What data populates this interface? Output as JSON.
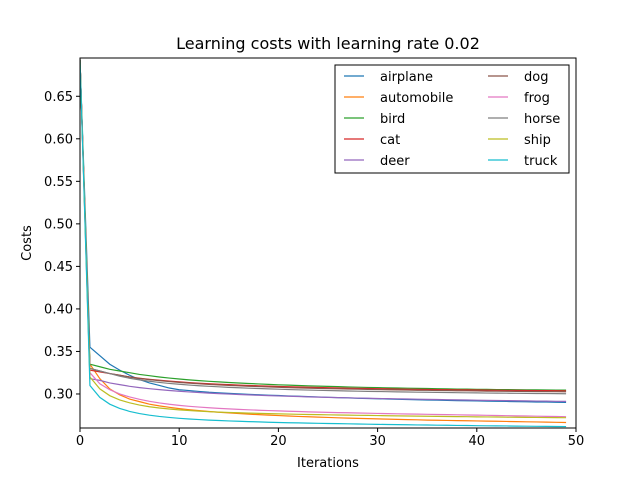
{
  "chart_data": {
    "type": "line",
    "title": "Learning costs with learning rate 0.02",
    "xlabel": "Iterations",
    "ylabel": "Costs",
    "xlim": [
      0,
      50
    ],
    "ylim": [
      0.26,
      0.695
    ],
    "xticks": [
      0,
      10,
      20,
      30,
      40,
      50
    ],
    "yticks": [
      0.3,
      0.35,
      0.4,
      0.45,
      0.5,
      0.55,
      0.6,
      0.65
    ],
    "ytick_labels": [
      "0.30",
      "0.35",
      "0.40",
      "0.45",
      "0.50",
      "0.55",
      "0.60",
      "0.65"
    ],
    "grid": false,
    "legend_position": "upper right",
    "x": [
      0,
      1,
      2,
      3,
      4,
      5,
      6,
      7,
      8,
      9,
      10,
      11,
      12,
      13,
      14,
      15,
      16,
      17,
      18,
      19,
      20,
      21,
      22,
      23,
      24,
      25,
      26,
      27,
      28,
      29,
      30,
      31,
      32,
      33,
      34,
      35,
      36,
      37,
      38,
      39,
      40,
      41,
      42,
      43,
      44,
      45,
      46,
      47,
      48,
      49
    ],
    "series": [
      {
        "name": "airplane",
        "color": "#1f77b4",
        "values": [
          0.693,
          0.355,
          0.345,
          0.335,
          0.328,
          0.322,
          0.317,
          0.313,
          0.31,
          0.307,
          0.305,
          0.304,
          0.303,
          0.302,
          0.3013,
          0.3007,
          0.3001,
          0.2996,
          0.2991,
          0.2986,
          0.2982,
          0.2977,
          0.2973,
          0.2969,
          0.2965,
          0.2961,
          0.2957,
          0.2954,
          0.295,
          0.2947,
          0.2944,
          0.2941,
          0.2938,
          0.2935,
          0.2932,
          0.2929,
          0.2927,
          0.2924,
          0.2922,
          0.292,
          0.2918,
          0.2916,
          0.2914,
          0.2912,
          0.291,
          0.2908,
          0.2906,
          0.2905,
          0.2903,
          0.2901
        ]
      },
      {
        "name": "automobile",
        "color": "#ff7f0e",
        "values": [
          0.693,
          0.335,
          0.318,
          0.306,
          0.299,
          0.294,
          0.291,
          0.288,
          0.286,
          0.2843,
          0.2828,
          0.2815,
          0.2804,
          0.2794,
          0.2785,
          0.2777,
          0.277,
          0.2763,
          0.2757,
          0.2751,
          0.2746,
          0.2741,
          0.2736,
          0.2732,
          0.2728,
          0.2724,
          0.272,
          0.2716,
          0.2713,
          0.271,
          0.2707,
          0.2704,
          0.2701,
          0.2698,
          0.2696,
          0.2693,
          0.2691,
          0.2689,
          0.2687,
          0.2685,
          0.2683,
          0.2681,
          0.2679,
          0.2677,
          0.2675,
          0.2673,
          0.2671,
          0.2669,
          0.2667,
          0.2665
        ]
      },
      {
        "name": "bird",
        "color": "#2ca02c",
        "values": [
          0.693,
          0.335,
          0.332,
          0.329,
          0.327,
          0.325,
          0.323,
          0.3215,
          0.32,
          0.3187,
          0.3176,
          0.3166,
          0.3157,
          0.3149,
          0.3142,
          0.3135,
          0.3129,
          0.3123,
          0.3118,
          0.3113,
          0.3108,
          0.3104,
          0.31,
          0.3096,
          0.3092,
          0.3089,
          0.3086,
          0.3083,
          0.308,
          0.3077,
          0.3075,
          0.3072,
          0.307,
          0.3068,
          0.3066,
          0.3064,
          0.3062,
          0.306,
          0.3058,
          0.3057,
          0.3055,
          0.3054,
          0.3052,
          0.3051,
          0.305,
          0.3049,
          0.3048,
          0.3047,
          0.3046,
          0.3045
        ]
      },
      {
        "name": "cat",
        "color": "#d62728",
        "values": [
          0.693,
          0.328,
          0.326,
          0.324,
          0.322,
          0.32,
          0.3185,
          0.3172,
          0.3161,
          0.3151,
          0.3142,
          0.3134,
          0.3127,
          0.3121,
          0.3115,
          0.311,
          0.3105,
          0.31,
          0.3096,
          0.3092,
          0.3088,
          0.3085,
          0.3082,
          0.3079,
          0.3076,
          0.3073,
          0.3071,
          0.3068,
          0.3066,
          0.3064,
          0.3062,
          0.306,
          0.3058,
          0.3056,
          0.3055,
          0.3053,
          0.3052,
          0.305,
          0.3049,
          0.3048,
          0.3047,
          0.3045,
          0.3044,
          0.3043,
          0.3042,
          0.3041,
          0.304,
          0.3039,
          0.3038,
          0.3037
        ]
      },
      {
        "name": "deer",
        "color": "#9467bd",
        "values": [
          0.693,
          0.318,
          0.316,
          0.313,
          0.311,
          0.309,
          0.3075,
          0.3062,
          0.3051,
          0.3041,
          0.3032,
          0.3024,
          0.3017,
          0.301,
          0.3004,
          0.2999,
          0.2994,
          0.2989,
          0.2985,
          0.2981,
          0.2977,
          0.2973,
          0.297,
          0.2966,
          0.2963,
          0.296,
          0.2957,
          0.2955,
          0.2952,
          0.295,
          0.2947,
          0.2945,
          0.2943,
          0.2941,
          0.2939,
          0.2937,
          0.2935,
          0.2933,
          0.2931,
          0.2929,
          0.2927,
          0.2925,
          0.2924,
          0.2922,
          0.292,
          0.2919,
          0.2917,
          0.2916,
          0.2914,
          0.2913
        ]
      },
      {
        "name": "dog",
        "color": "#8c564b",
        "values": [
          0.693,
          0.33,
          0.327,
          0.324,
          0.322,
          0.32,
          0.3183,
          0.3169,
          0.3157,
          0.3146,
          0.3136,
          0.3128,
          0.312,
          0.3113,
          0.3107,
          0.3101,
          0.3096,
          0.3091,
          0.3087,
          0.3083,
          0.3079,
          0.3075,
          0.3072,
          0.3069,
          0.3066,
          0.3063,
          0.3061,
          0.3058,
          0.3056,
          0.3054,
          0.3052,
          0.305,
          0.3048,
          0.3046,
          0.3044,
          0.3043,
          0.3041,
          0.304,
          0.3038,
          0.3037,
          0.3036,
          0.3034,
          0.3033,
          0.3032,
          0.3031,
          0.303,
          0.3029,
          0.3028,
          0.3027,
          0.3026
        ]
      },
      {
        "name": "frog",
        "color": "#e377c2",
        "values": [
          0.693,
          0.325,
          0.312,
          0.305,
          0.3,
          0.2965,
          0.2937,
          0.2914,
          0.2895,
          0.2879,
          0.2866,
          0.2855,
          0.2846,
          0.2838,
          0.2831,
          0.2825,
          0.2819,
          0.2814,
          0.2809,
          0.2805,
          0.2801,
          0.2797,
          0.2794,
          0.279,
          0.2787,
          0.2784,
          0.2781,
          0.2779,
          0.2776,
          0.2774,
          0.2771,
          0.2769,
          0.2767,
          0.2765,
          0.2763,
          0.2761,
          0.2759,
          0.2757,
          0.2755,
          0.2753,
          0.2751,
          0.2749,
          0.2747,
          0.2745,
          0.2743,
          0.2741,
          0.2739,
          0.2737,
          0.2735,
          0.2733
        ]
      },
      {
        "name": "horse",
        "color": "#7f7f7f",
        "values": [
          0.693,
          0.33,
          0.327,
          0.324,
          0.321,
          0.3185,
          0.3166,
          0.315,
          0.3136,
          0.3124,
          0.3114,
          0.3105,
          0.3097,
          0.309,
          0.3084,
          0.3078,
          0.3073,
          0.3068,
          0.3064,
          0.306,
          0.3056,
          0.3052,
          0.3049,
          0.3046,
          0.3043,
          0.304,
          0.3038,
          0.3035,
          0.3033,
          0.3031,
          0.3029,
          0.3027,
          0.3025,
          0.3023,
          0.3021,
          0.302,
          0.3018,
          0.3017,
          0.3015,
          0.3014,
          0.3013,
          0.3011,
          0.301,
          0.3009,
          0.3008,
          0.3007,
          0.3006,
          0.3005,
          0.3004,
          0.3003
        ]
      },
      {
        "name": "ship",
        "color": "#bcbd22",
        "values": [
          0.693,
          0.32,
          0.306,
          0.298,
          0.293,
          0.2896,
          0.287,
          0.285,
          0.2835,
          0.2823,
          0.2813,
          0.2805,
          0.2798,
          0.2792,
          0.2787,
          0.2783,
          0.2779,
          0.2775,
          0.2772,
          0.2769,
          0.2766,
          0.2764,
          0.2761,
          0.2759,
          0.2757,
          0.2755,
          0.2753,
          0.2751,
          0.2749,
          0.2748,
          0.2746,
          0.2744,
          0.2743,
          0.2741,
          0.274,
          0.2738,
          0.2737,
          0.2735,
          0.2734,
          0.2733,
          0.2731,
          0.273,
          0.2729,
          0.2727,
          0.2726,
          0.2725,
          0.2724,
          0.2723,
          0.2722,
          0.2721
        ]
      },
      {
        "name": "truck",
        "color": "#17becf",
        "values": [
          0.693,
          0.31,
          0.296,
          0.288,
          0.283,
          0.2795,
          0.277,
          0.2751,
          0.2736,
          0.2724,
          0.2714,
          0.2706,
          0.2699,
          0.2693,
          0.2688,
          0.2683,
          0.2679,
          0.2675,
          0.2672,
          0.2668,
          0.2665,
          0.2662,
          0.266,
          0.2657,
          0.2655,
          0.2653,
          0.2651,
          0.2649,
          0.2647,
          0.2645,
          0.2643,
          0.2641,
          0.264,
          0.2638,
          0.2636,
          0.2635,
          0.2633,
          0.2632,
          0.263,
          0.2629,
          0.2627,
          0.2626,
          0.2625,
          0.2624,
          0.2622,
          0.2621,
          0.262,
          0.2619,
          0.2618,
          0.2617
        ]
      }
    ]
  }
}
